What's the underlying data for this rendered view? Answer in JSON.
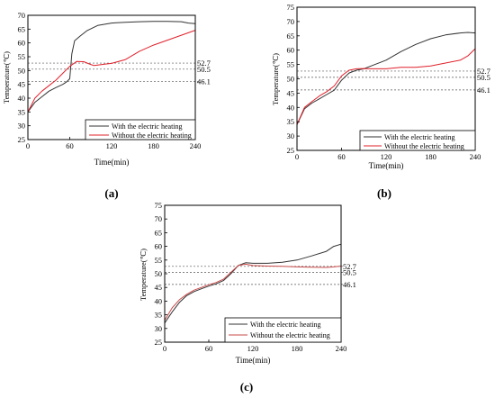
{
  "chart_data": [
    {
      "type": "line",
      "panel_label": "(a)",
      "xlabel": "Time(min)",
      "ylabel": "Temperature(℃)",
      "xlim": [
        0,
        240
      ],
      "ylim": [
        25,
        70
      ],
      "xticks": [
        "0",
        "60",
        "120",
        "180",
        "240"
      ],
      "yticks": [
        "25",
        "30",
        "35",
        "40",
        "45",
        "50",
        "55",
        "60",
        "65",
        "70"
      ],
      "reference_lines": [
        {
          "value": 52.7,
          "label": "52.7"
        },
        {
          "value": 50.5,
          "label": "50.5"
        },
        {
          "value": 46.1,
          "label": "46.1"
        }
      ],
      "legend_position": "bottom-right",
      "series": [
        {
          "name": "With the electric heating",
          "color": "#333333",
          "x": [
            0,
            10,
            20,
            30,
            40,
            50,
            55,
            60,
            63,
            67,
            75,
            85,
            100,
            120,
            140,
            160,
            180,
            200,
            220,
            230,
            240
          ],
          "y": [
            35,
            38.5,
            40.5,
            42.5,
            43.8,
            45,
            45.8,
            47,
            56,
            60.8,
            62.5,
            64.5,
            66.3,
            67.2,
            67.5,
            67.7,
            67.8,
            67.8,
            67.7,
            67.2,
            67
          ]
        },
        {
          "name": "Without the electric heating",
          "color": "#e0202a",
          "x": [
            0,
            10,
            20,
            30,
            40,
            50,
            60,
            70,
            80,
            90,
            95,
            100,
            110,
            120,
            140,
            160,
            180,
            200,
            220,
            240
          ],
          "y": [
            35,
            40,
            42.5,
            44.5,
            46.5,
            49,
            51.5,
            53.3,
            53.2,
            52.2,
            51.8,
            52,
            52.3,
            52.6,
            54,
            57,
            59.2,
            61,
            62.8,
            64.6
          ]
        }
      ]
    },
    {
      "type": "line",
      "panel_label": "(b)",
      "xlabel": "Time(min)",
      "ylabel": "Temperature(℃)",
      "xlim": [
        0,
        240
      ],
      "ylim": [
        25,
        75
      ],
      "xticks": [
        "0",
        "60",
        "120",
        "180",
        "240"
      ],
      "yticks": [
        "25",
        "30",
        "35",
        "40",
        "45",
        "50",
        "55",
        "60",
        "65",
        "70",
        "75"
      ],
      "reference_lines": [
        {
          "value": 52.7,
          "label": "52.7"
        },
        {
          "value": 50.5,
          "label": "50.5"
        },
        {
          "value": 46.1,
          "label": "46.1"
        }
      ],
      "legend_position": "bottom-right",
      "series": [
        {
          "name": "With the electric heating",
          "color": "#333333",
          "x": [
            0,
            10,
            20,
            30,
            40,
            50,
            60,
            70,
            80,
            90,
            100,
            120,
            140,
            160,
            180,
            200,
            220,
            230,
            240
          ],
          "y": [
            34,
            39.5,
            41.5,
            43,
            44.5,
            46,
            49.5,
            52,
            53,
            53.5,
            54.5,
            56.5,
            59.5,
            62,
            64,
            65.3,
            66,
            66.2,
            66
          ]
        },
        {
          "name": "Without the electric heating",
          "color": "#e0202a",
          "x": [
            0,
            10,
            20,
            30,
            40,
            50,
            60,
            70,
            80,
            90,
            100,
            120,
            140,
            160,
            180,
            200,
            220,
            230,
            240
          ],
          "y": [
            34,
            40,
            42,
            44,
            45.5,
            47.5,
            51,
            53,
            53.5,
            53.6,
            53.5,
            53.5,
            54,
            54,
            54.5,
            55.5,
            56.5,
            58,
            60.5
          ]
        }
      ]
    },
    {
      "type": "line",
      "panel_label": "(c)",
      "xlabel": "Time(min)",
      "ylabel": "Temperature(℃)",
      "xlim": [
        0,
        240
      ],
      "ylim": [
        25,
        75
      ],
      "xticks": [
        "0",
        "60",
        "120",
        "180",
        "240"
      ],
      "yticks": [
        "25",
        "30",
        "35",
        "40",
        "45",
        "50",
        "55",
        "60",
        "65",
        "70",
        "75"
      ],
      "reference_lines": [
        {
          "value": 52.7,
          "label": "52.7"
        },
        {
          "value": 50.5,
          "label": "50.5"
        },
        {
          "value": 46.1,
          "label": "46.1"
        }
      ],
      "legend_position": "bottom-right",
      "series": [
        {
          "name": "With the electric heating",
          "color": "#333333",
          "x": [
            0,
            10,
            20,
            30,
            40,
            50,
            60,
            70,
            80,
            90,
            100,
            110,
            120,
            140,
            160,
            180,
            200,
            220,
            230,
            240
          ],
          "y": [
            32,
            36,
            39.5,
            42,
            43.5,
            44.5,
            45.5,
            46.3,
            47.5,
            50,
            53,
            54,
            53.8,
            53.8,
            54.2,
            55,
            56.5,
            58.2,
            60,
            60.8
          ]
        },
        {
          "name": "Without the electric heating",
          "color": "#c94a4a",
          "x": [
            0,
            10,
            20,
            30,
            40,
            50,
            60,
            70,
            80,
            90,
            100,
            110,
            120,
            140,
            160,
            180,
            200,
            220,
            230,
            240
          ],
          "y": [
            33,
            37.5,
            40.5,
            42.5,
            44,
            45,
            46,
            46.8,
            48,
            50.5,
            53,
            53.5,
            53,
            52.8,
            52.7,
            52.5,
            52.4,
            52.3,
            52.5,
            52.8
          ]
        }
      ]
    }
  ]
}
